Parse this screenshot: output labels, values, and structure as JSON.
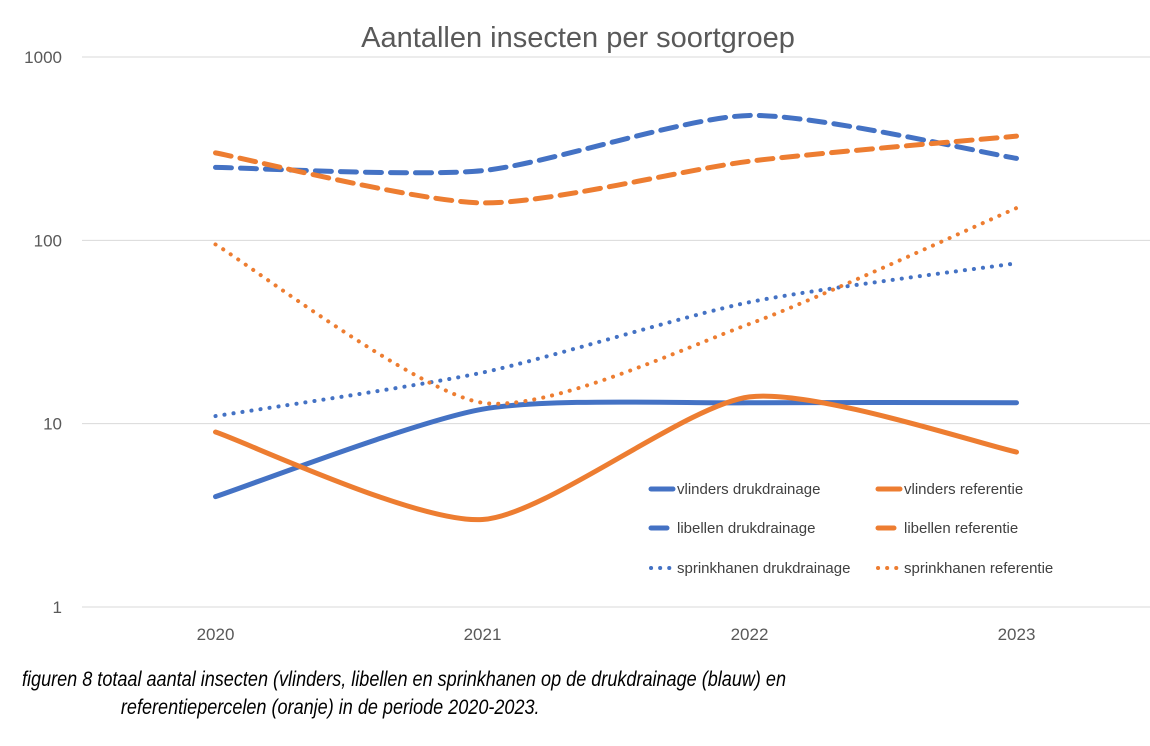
{
  "chart_data": {
    "type": "line",
    "title": "Aantallen insecten per soortgroep",
    "xlabel": "",
    "ylabel": "",
    "yscale": "log",
    "ylim": [
      1,
      1000
    ],
    "yticks": [
      "1",
      "10",
      "100",
      "1000"
    ],
    "ytick_values": [
      1,
      10,
      100,
      1000
    ],
    "grid": true,
    "legend_position": "bottom-right (inside plot)",
    "categories": [
      "2020",
      "2021",
      "2022",
      "2023"
    ],
    "series": [
      {
        "name": "vlinders drukdrainage",
        "color": "#4472C4",
        "style": "solid",
        "values": [
          4,
          12,
          13,
          13
        ]
      },
      {
        "name": "vlinders referentie",
        "color": "#ED7D31",
        "style": "solid",
        "values": [
          9,
          3,
          14,
          7
        ]
      },
      {
        "name": "libellen drukdrainage",
        "color": "#4472C4",
        "style": "dashed",
        "values": [
          250,
          240,
          480,
          280
        ]
      },
      {
        "name": "libellen referentie",
        "color": "#ED7D31",
        "style": "dashed",
        "values": [
          300,
          160,
          270,
          370
        ]
      },
      {
        "name": "sprinkhanen drukdrainage",
        "color": "#4472C4",
        "style": "dotted",
        "values": [
          11,
          19,
          46,
          75
        ]
      },
      {
        "name": "sprinkhanen referentie",
        "color": "#ED7D31",
        "style": "dotted",
        "values": [
          95,
          13,
          35,
          150
        ]
      }
    ]
  },
  "caption": {
    "line1": "figuren 8 totaal aantal insecten (vlinders, libellen en sprinkhanen op de drukdrainage (blauw) en",
    "line2": "referentiepercelen (oranje) in de periode 2020-2023."
  }
}
